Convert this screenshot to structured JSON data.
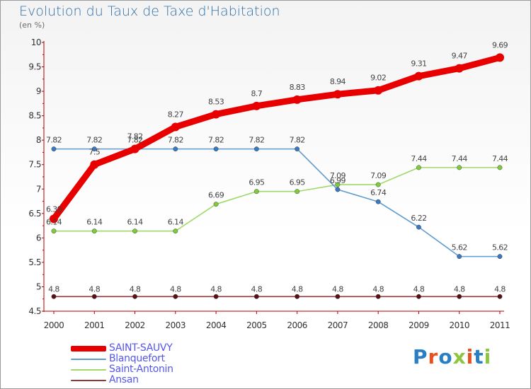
{
  "header": {
    "title": "Evolution du Taux de Taxe d'Habitation",
    "subtitle": "(en %)"
  },
  "logo": {
    "text": "Proxiti",
    "letter_colors": [
      "#2a7fc4",
      "#e8501e",
      "#2a7fc4",
      "#8cc63f",
      "#e8501e",
      "#2a7fc4",
      "#8cc63f"
    ]
  },
  "chart_data": {
    "type": "line",
    "x": [
      "2000",
      "2001",
      "2002",
      "2003",
      "2004",
      "2005",
      "2006",
      "2007",
      "2008",
      "2009",
      "2010",
      "2011"
    ],
    "ylim": [
      4.5,
      10
    ],
    "yticks": [
      "4.5",
      "5",
      "5.5",
      "6",
      "6.5",
      "7",
      "7.5",
      "8",
      "8.5",
      "9",
      "9.5",
      "10"
    ],
    "grid": false,
    "legend_position": "bottom-left",
    "series": [
      {
        "name": "SAINT-SAUVY",
        "color": "#e80000",
        "values": [
          6.39,
          7.5,
          7.82,
          8.27,
          8.53,
          8.7,
          8.83,
          8.94,
          9.02,
          9.31,
          9.47,
          9.69
        ],
        "labels": [
          "6.39",
          "7.5",
          "7.82",
          "8.27",
          "8.53",
          "8.7",
          "8.83",
          "8.94",
          "9.02",
          "9.31",
          "9.47",
          "9.69"
        ]
      },
      {
        "name": "Blanquefort",
        "color": "#5f9bd0",
        "values": [
          7.82,
          7.82,
          7.82,
          7.82,
          7.82,
          7.82,
          7.82,
          6.99,
          6.74,
          6.22,
          5.62,
          5.62
        ],
        "labels": [
          "7.82",
          "7.82",
          "7.82",
          "7.82",
          "7.82",
          "7.82",
          "7.82",
          "6.99",
          "6.74",
          "6.22",
          "5.62",
          "5.62"
        ]
      },
      {
        "name": "Saint-Antonin",
        "color": "#9fd96a",
        "values": [
          6.14,
          6.14,
          6.14,
          6.14,
          6.69,
          6.95,
          6.95,
          7.09,
          7.09,
          7.44,
          7.44,
          7.44
        ],
        "labels": [
          "6.14",
          "6.14",
          "6.14",
          "6.14",
          "6.69",
          "6.95",
          "6.95",
          "7.09",
          "7.09",
          "7.44",
          "7.44",
          "7.44"
        ]
      },
      {
        "name": "Ansan",
        "color": "#8a3a3a",
        "values": [
          4.8,
          4.8,
          4.8,
          4.8,
          4.8,
          4.8,
          4.8,
          4.8,
          4.8,
          4.8,
          4.8,
          4.8
        ],
        "labels": [
          "4.8",
          "4.8",
          "4.8",
          "4.8",
          "4.8",
          "4.8",
          "4.8",
          "4.8",
          "4.8",
          "4.8",
          "4.8",
          "4.8"
        ]
      }
    ]
  }
}
